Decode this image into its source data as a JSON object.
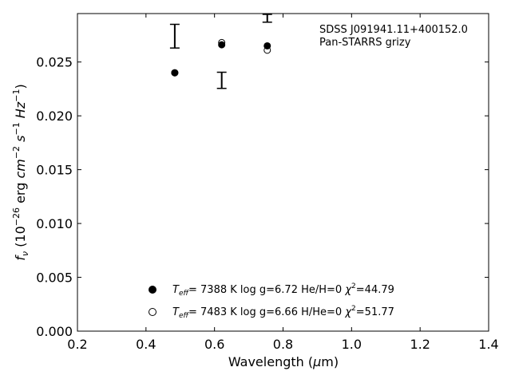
{
  "chart_data": {
    "type": "scatter",
    "xlabel": "Wavelength (μm)",
    "ylabel": "f_ν (10^-26 erg cm^-2 s^-1 Hz^-1)",
    "xlim": [
      0.2,
      1.4
    ],
    "ylim": [
      0.0,
      0.0295
    ],
    "xticks": [
      0.2,
      0.4,
      0.6,
      0.8,
      1.0,
      1.2,
      1.4
    ],
    "xtick_labels": [
      "0.2",
      "0.4",
      "0.6",
      "0.8",
      "1.0",
      "1.2",
      "1.4"
    ],
    "yticks": [
      0.0,
      0.005,
      0.01,
      0.015,
      0.02,
      0.025
    ],
    "ytick_labels": [
      "0.000",
      "0.005",
      "0.010",
      "0.015",
      "0.020",
      "0.025"
    ],
    "grid": false,
    "annotation": [
      "SDSS J091941.11+400152.0",
      "Pan-STARRS grizy"
    ],
    "observed_errorbars": [
      {
        "x": 0.484,
        "y": 0.0274,
        "yerr": 0.0011
      },
      {
        "x": 0.621,
        "y": 0.0233,
        "yerr": 0.00075
      },
      {
        "x": 0.754,
        "y": 0.0293,
        "yerr": 0.0006
      }
    ],
    "series": [
      {
        "marker": "filled",
        "legend": {
          "teff": "7388 K",
          "logg": "log g=6.72",
          "comp": "He/H=0",
          "chi2": "=44.79"
        },
        "x": [
          0.484,
          0.621,
          0.754
        ],
        "values": [
          0.024,
          0.0266,
          0.0265
        ]
      },
      {
        "marker": "open",
        "legend": {
          "teff": "7483 K",
          "logg": "log g=6.66",
          "comp": "H/He=0",
          "chi2": "=51.77"
        },
        "x": [
          0.484,
          0.621,
          0.754
        ],
        "values": [
          0.024,
          0.0268,
          0.0261
        ]
      }
    ],
    "legend_placement": "lower-center"
  }
}
